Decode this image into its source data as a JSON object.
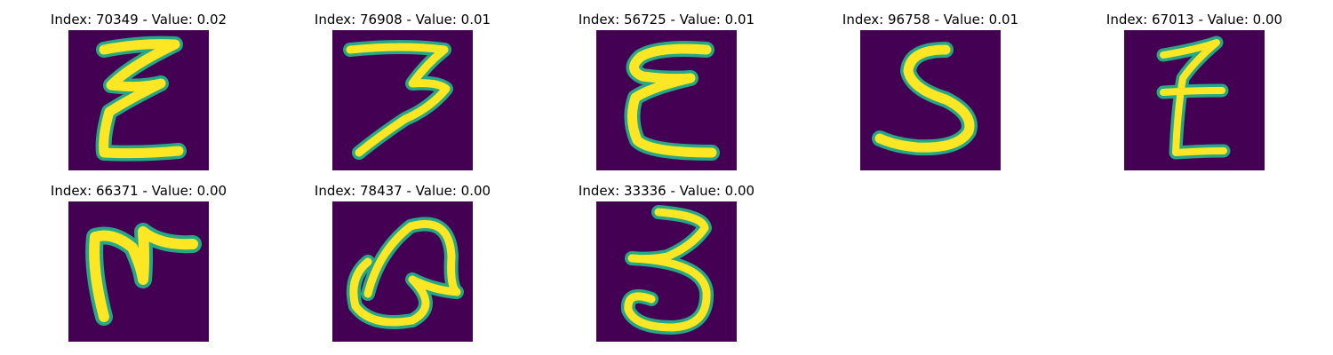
{
  "colors": {
    "background": "#ffffff",
    "cell_background": "#440154",
    "stroke_edge": "#26a785",
    "stroke_core": "#fde725"
  },
  "grid": {
    "samples": [
      {
        "title": "Index: 70349 - Value: 0.02",
        "glyph": "E-like"
      },
      {
        "title": "Index: 76908 - Value: 0.01",
        "glyph": "3-like"
      },
      {
        "title": "Index: 56725 - Value: 0.01",
        "glyph": "E-curly"
      },
      {
        "title": "Index: 96758 - Value: 0.01",
        "glyph": "S-like"
      },
      {
        "title": "Index: 67013 - Value: 0.00",
        "glyph": "Z-crossed"
      },
      {
        "title": "Index: 66371 - Value: 0.00",
        "glyph": "M-like"
      },
      {
        "title": "Index: 78437 - Value: 0.00",
        "glyph": "Q-loop"
      },
      {
        "title": "Index: 33336 - Value: 0.00",
        "glyph": "3-round"
      }
    ]
  }
}
